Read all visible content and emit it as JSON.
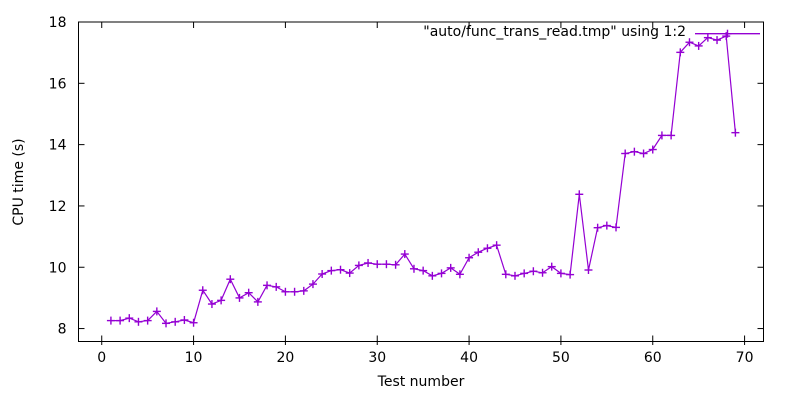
{
  "figure": {
    "background_color": "#ffffff",
    "border_color": "#000000",
    "text_color": "#000000",
    "series_color": "#9400d3",
    "legend_label": "\"auto/func_trans_read.tmp\" using 1:2"
  },
  "chart_data": {
    "type": "line",
    "style": "linespoints-plus-markers",
    "title": "",
    "xlabel": "Test number",
    "ylabel": "CPU time (s)",
    "legend_entries": [
      "\"auto/func_trans_read.tmp\" using 1:2"
    ],
    "legend_position": "top-right-inside",
    "grid": false,
    "xlim": [
      -2.53,
      72.06
    ],
    "ylim": [
      7.578,
      18
    ],
    "x_ticks": [
      0,
      10,
      20,
      30,
      40,
      50,
      60,
      70
    ],
    "y_ticks": [
      8,
      10,
      12,
      14,
      16,
      18
    ],
    "x": [
      1,
      2,
      3,
      4,
      5,
      6,
      7,
      8,
      9,
      10,
      11,
      12,
      13,
      14,
      15,
      16,
      17,
      18,
      19,
      20,
      21,
      22,
      23,
      24,
      25,
      26,
      27,
      28,
      29,
      30,
      31,
      32,
      33,
      34,
      35,
      36,
      37,
      38,
      39,
      40,
      41,
      42,
      43,
      44,
      45,
      46,
      47,
      48,
      49,
      50,
      51,
      52,
      53,
      54,
      55,
      56,
      57,
      58,
      59,
      60,
      61,
      62,
      63,
      64,
      65,
      66,
      67,
      68,
      69
    ],
    "y": [
      8.26,
      8.26,
      8.34,
      8.22,
      8.26,
      8.56,
      8.17,
      8.22,
      8.28,
      8.19,
      9.25,
      8.8,
      8.92,
      9.61,
      9.0,
      9.17,
      8.87,
      9.41,
      9.36,
      9.2,
      9.2,
      9.23,
      9.45,
      9.78,
      9.89,
      9.92,
      9.81,
      10.06,
      10.14,
      10.1,
      10.1,
      10.08,
      10.43,
      9.95,
      9.89,
      9.72,
      9.8,
      9.98,
      9.77,
      10.31,
      10.49,
      10.62,
      10.72,
      9.77,
      9.72,
      9.8,
      9.87,
      9.82,
      10.02,
      9.8,
      9.76,
      12.38,
      9.91,
      11.29,
      11.36,
      11.3,
      13.71,
      13.77,
      13.71,
      13.84,
      14.3,
      14.3,
      17.01,
      17.34,
      17.22,
      17.49,
      17.41,
      17.54,
      14.39
    ]
  }
}
